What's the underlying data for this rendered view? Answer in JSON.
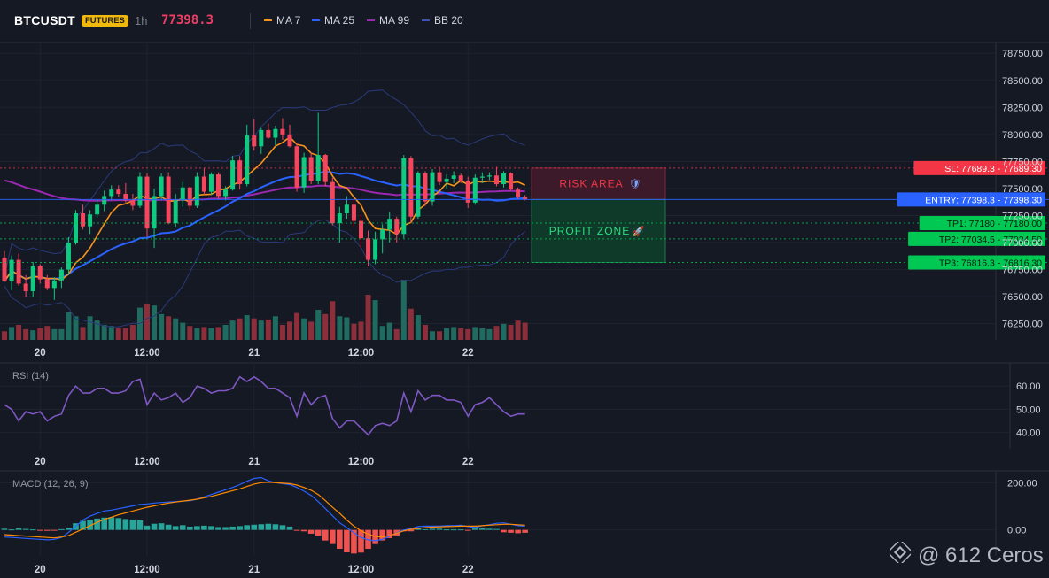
{
  "header": {
    "symbol": "BTCUSDT",
    "badge": "FUTURES",
    "timeframe": "1h",
    "price": "77398.3",
    "legend": [
      {
        "label": "MA 7",
        "color": "#f7931a"
      },
      {
        "label": "MA 25",
        "color": "#2962ff"
      },
      {
        "label": "MA 99",
        "color": "#9c27b0"
      },
      {
        "label": "BB 20",
        "color": "#3f51b5"
      }
    ]
  },
  "chart_data": [
    {
      "type": "candlestick",
      "y_axis_ticks": [
        "78750.00",
        "78500.00",
        "78250.00",
        "78000.00",
        "77750.00",
        "77500.00",
        "77250.00",
        "77000.00",
        "76750.00",
        "76500.00",
        "76250.00"
      ],
      "ylim": [
        76100,
        78850
      ],
      "x_ticks": [
        "20",
        "12:00",
        "21",
        "12:00",
        "22"
      ],
      "levels": [
        {
          "label": "SL: 77689.3",
          "value": "77689.30",
          "price": 77689.3,
          "color": "#f23645"
        },
        {
          "label": "ENTRY: 77398.3",
          "value": "77398.30",
          "price": 77398.3,
          "color": "#2962ff"
        },
        {
          "label": "TP1: 77180",
          "value": "77180.00",
          "price": 77180,
          "color": "#00c853"
        },
        {
          "label": "TP2: 77034.5",
          "value": "77034.50",
          "price": 77034.5,
          "color": "#00c853"
        },
        {
          "label": "TP3: 76816.3",
          "value": "76816.30",
          "price": 76816.3,
          "color": "#00c853"
        }
      ],
      "zones": [
        {
          "label": "RISK AREA",
          "emoji": "🛡️",
          "from": 77689.3,
          "to": 77398.3
        },
        {
          "label": "PROFIT ZONE",
          "emoji": "🚀",
          "from": 77398.3,
          "to": 76816.3
        }
      ],
      "candles": [
        [
          76860,
          76920,
          76640,
          76640
        ],
        [
          76640,
          76880,
          76560,
          76840
        ],
        [
          76840,
          76900,
          76600,
          76620
        ],
        [
          76620,
          76700,
          76500,
          76550
        ],
        [
          76550,
          76820,
          76500,
          76780
        ],
        [
          76780,
          76800,
          76620,
          76660
        ],
        [
          76660,
          76700,
          76560,
          76580
        ],
        [
          76580,
          76680,
          76470,
          76650
        ],
        [
          76650,
          76770,
          76580,
          76750
        ],
        [
          76750,
          77050,
          76700,
          77000
        ],
        [
          77000,
          77300,
          76980,
          77270
        ],
        [
          77270,
          77350,
          77120,
          77150
        ],
        [
          77150,
          77300,
          77080,
          77260
        ],
        [
          77260,
          77400,
          77230,
          77350
        ],
        [
          77350,
          77480,
          77290,
          77430
        ],
        [
          77430,
          77530,
          77390,
          77490
        ],
        [
          77490,
          77530,
          77420,
          77450
        ],
        [
          77450,
          77550,
          77370,
          77390
        ],
        [
          77390,
          77450,
          77300,
          77340
        ],
        [
          77340,
          77650,
          77320,
          77610
        ],
        [
          77610,
          77640,
          77050,
          77130
        ],
        [
          77130,
          77500,
          76950,
          77430
        ],
        [
          77430,
          77640,
          77390,
          77610
        ],
        [
          77610,
          77650,
          77170,
          77180
        ],
        [
          77180,
          77450,
          77140,
          77390
        ],
        [
          77390,
          77560,
          77330,
          77510
        ],
        [
          77510,
          77520,
          77300,
          77340
        ],
        [
          77340,
          77650,
          77320,
          77610
        ],
        [
          77610,
          77690,
          77440,
          77470
        ],
        [
          77470,
          77650,
          77440,
          77630
        ],
        [
          77630,
          77650,
          77400,
          77430
        ],
        [
          77430,
          77520,
          77390,
          77490
        ],
        [
          77490,
          77800,
          77480,
          77760
        ],
        [
          77760,
          77800,
          77490,
          77540
        ],
        [
          77540,
          78090,
          77520,
          77990
        ],
        [
          77990,
          78140,
          77850,
          77890
        ],
        [
          77890,
          78060,
          77820,
          78040
        ],
        [
          78040,
          78100,
          77960,
          77970
        ],
        [
          77970,
          78080,
          77900,
          78050
        ],
        [
          78050,
          78150,
          77950,
          78000
        ],
        [
          78000,
          78090,
          77880,
          77890
        ],
        [
          77890,
          77920,
          77470,
          77510
        ],
        [
          77510,
          77830,
          77460,
          77790
        ],
        [
          77790,
          77830,
          77540,
          77570
        ],
        [
          77570,
          78200,
          77540,
          77810
        ],
        [
          77810,
          77820,
          77520,
          77560
        ],
        [
          77560,
          77600,
          77160,
          77180
        ],
        [
          77180,
          77330,
          77000,
          77270
        ],
        [
          77270,
          77430,
          77220,
          77350
        ],
        [
          77350,
          77400,
          77150,
          77200
        ],
        [
          77200,
          77260,
          76950,
          77040
        ],
        [
          77040,
          77110,
          76780,
          76840
        ],
        [
          76840,
          77100,
          76800,
          77030
        ],
        [
          77030,
          77170,
          76900,
          77120
        ],
        [
          77120,
          77280,
          77000,
          77220
        ],
        [
          77220,
          77240,
          77000,
          77080
        ],
        [
          77080,
          77810,
          77040,
          77780
        ],
        [
          77780,
          77800,
          77180,
          77240
        ],
        [
          77240,
          77660,
          77220,
          77640
        ],
        [
          77640,
          77660,
          77340,
          77380
        ],
        [
          77380,
          77680,
          77340,
          77650
        ],
        [
          77650,
          77700,
          77530,
          77560
        ],
        [
          77560,
          77630,
          77500,
          77590
        ],
        [
          77590,
          77660,
          77550,
          77620
        ],
        [
          77620,
          77640,
          77550,
          77570
        ],
        [
          77570,
          77610,
          77320,
          77370
        ],
        [
          77370,
          77630,
          77350,
          77600
        ],
        [
          77600,
          77650,
          77550,
          77610
        ],
        [
          77610,
          77650,
          77580,
          77620
        ],
        [
          77620,
          77700,
          77520,
          77540
        ],
        [
          77540,
          77660,
          77510,
          77640
        ],
        [
          77640,
          77650,
          77480,
          77490
        ],
        [
          77490,
          77510,
          77400,
          77420
        ],
        [
          77420,
          77440,
          77390,
          77400
        ]
      ],
      "volume": [
        8,
        12,
        14,
        10,
        9,
        11,
        13,
        10,
        10,
        26,
        22,
        12,
        22,
        18,
        14,
        13,
        11,
        11,
        14,
        30,
        33,
        32,
        24,
        22,
        20,
        16,
        13,
        11,
        12,
        11,
        12,
        14,
        18,
        20,
        23,
        20,
        18,
        19,
        22,
        14,
        17,
        25,
        20,
        17,
        28,
        24,
        36,
        22,
        21,
        15,
        17,
        42,
        37,
        13,
        16,
        10,
        56,
        29,
        23,
        14,
        8,
        8,
        11,
        12,
        11,
        10,
        12,
        11,
        10,
        13,
        15,
        14,
        18,
        16
      ]
    },
    {
      "type": "line",
      "title": "RSI (14)",
      "y_axis_ticks": [
        "60.00",
        "50.00",
        "40.00"
      ],
      "ylim": [
        33,
        70
      ],
      "values": [
        52,
        50,
        45,
        49,
        48,
        49,
        45,
        47,
        48,
        56,
        60,
        57,
        57,
        59,
        59,
        57,
        57,
        58,
        62,
        63,
        52,
        57,
        54,
        55,
        57,
        53,
        55,
        60,
        59,
        57,
        58,
        58,
        59,
        64,
        62,
        64,
        62,
        59,
        59,
        57,
        55,
        47,
        57,
        52,
        55,
        56,
        46,
        42,
        45,
        45,
        42,
        39,
        43,
        44,
        43,
        45,
        57,
        49,
        58,
        54,
        56,
        56,
        54,
        54,
        53,
        47,
        52,
        53,
        55,
        52,
        49,
        47,
        48,
        48
      ]
    },
    {
      "type": "bar",
      "title": "MACD (12, 26, 9)",
      "y_axis_ticks": [
        "200.00",
        "0.00"
      ],
      "ylim": [
        -110,
        250
      ],
      "histogram": [
        5,
        2,
        6,
        4,
        2,
        -2,
        -4,
        -2,
        3,
        10,
        28,
        38,
        42,
        48,
        52,
        54,
        50,
        46,
        44,
        40,
        18,
        26,
        28,
        22,
        16,
        20,
        14,
        16,
        18,
        16,
        12,
        12,
        14,
        16,
        20,
        22,
        24,
        26,
        24,
        20,
        14,
        -2,
        -6,
        -16,
        -25,
        -45,
        -60,
        -80,
        -95,
        -100,
        -96,
        -80,
        -60,
        -45,
        -35,
        -24,
        -6,
        -6,
        6,
        3,
        5,
        5,
        2,
        2,
        2,
        -2,
        6,
        6,
        5,
        4,
        -10,
        -12,
        -14,
        -12
      ],
      "macd_line": [
        -30,
        -32,
        -34,
        -36,
        -38,
        -40,
        -42,
        -40,
        -32,
        -10,
        15,
        42,
        58,
        70,
        80,
        84,
        90,
        96,
        102,
        108,
        110,
        114,
        116,
        118,
        120,
        122,
        124,
        130,
        140,
        150,
        160,
        170,
        180,
        192,
        206,
        218,
        222,
        208,
        200,
        196,
        192,
        180,
        164,
        146,
        120,
        90,
        60,
        30,
        10,
        -12,
        -32,
        -42,
        -46,
        -40,
        -28,
        -12,
        0,
        5,
        14,
        16,
        16,
        16,
        18,
        18,
        20,
        14,
        10,
        18,
        22,
        28,
        30,
        24,
        18,
        16
      ],
      "signal_line": [
        -20,
        -22,
        -24,
        -26,
        -28,
        -30,
        -32,
        -34,
        -30,
        -24,
        -10,
        4,
        18,
        32,
        44,
        54,
        64,
        72,
        80,
        88,
        96,
        102,
        108,
        114,
        118,
        122,
        126,
        130,
        136,
        142,
        150,
        158,
        166,
        174,
        184,
        194,
        200,
        202,
        200,
        198,
        196,
        190,
        180,
        168,
        150,
        124,
        96,
        70,
        42,
        16,
        -4,
        -18,
        -28,
        -30,
        -24,
        -14,
        -4,
        2,
        6,
        10,
        12,
        13,
        14,
        15,
        16,
        16,
        16,
        18,
        20,
        22,
        24,
        24,
        22,
        20
      ]
    }
  ],
  "watermark": {
    "text": "@ 612 Ceros",
    "icon": "binance-diamond-icon"
  }
}
